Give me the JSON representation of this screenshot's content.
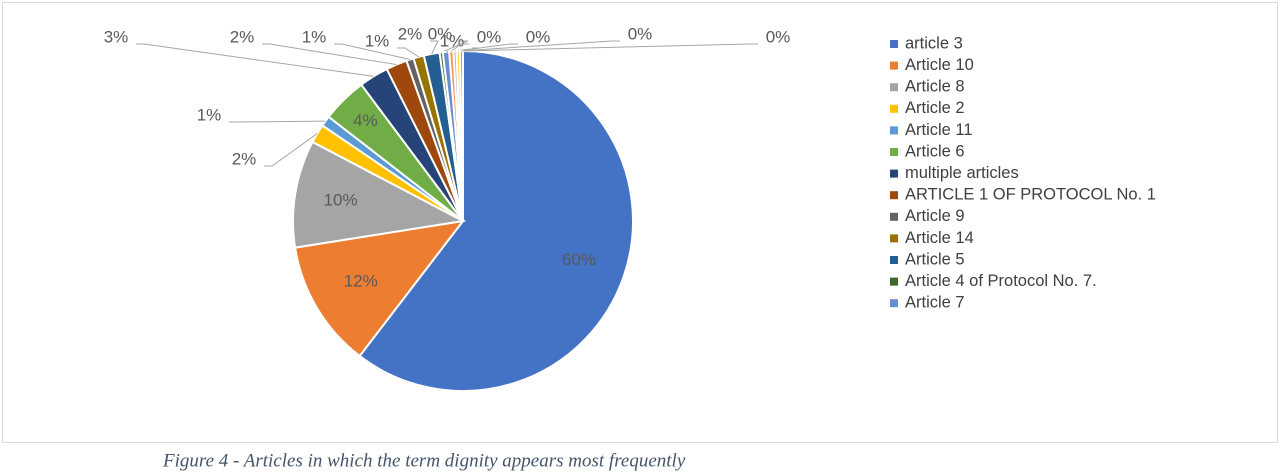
{
  "chart_data": {
    "type": "pie",
    "caption": "Figure 4 - Articles in which the term dignity appears most frequently",
    "categories": [
      "article 3",
      "Article 10",
      "Article 8",
      "Article 2",
      "Article 11",
      "Article 6",
      "multiple articles",
      "ARTICLE 1 OF PROTOCOL No. 1",
      "Article 9",
      "Article 14",
      "Article 5",
      "Article 4 of Protocol No. 7.",
      "Article 7",
      null,
      null,
      null,
      null
    ],
    "values": [
      60.4,
      12.1,
      10.2,
      1.8,
      1.0,
      4.3,
      2.8,
      2.0,
      0.7,
      1.0,
      1.5,
      0.3,
      0.6,
      0.4,
      0.3,
      0.3,
      0.3
    ],
    "value_labels": [
      "60%",
      "12%",
      "10%",
      "2%",
      "1%",
      "4%",
      "3%",
      "2%",
      "1%",
      "1%",
      "2%",
      "0%",
      "1%",
      "0%",
      "0%",
      "0%",
      "0%"
    ],
    "colors": [
      "#4472c4",
      "#ed7d31",
      "#a5a5a5",
      "#ffc000",
      "#5b9bd5",
      "#70ad47",
      "#264478",
      "#9e480e",
      "#636363",
      "#997300",
      "#255e91",
      "#43682b",
      "#698ed0",
      "#f1975a",
      "#b7b7b7",
      "#ffcd33",
      "#7cafdd"
    ],
    "legend": "right"
  }
}
